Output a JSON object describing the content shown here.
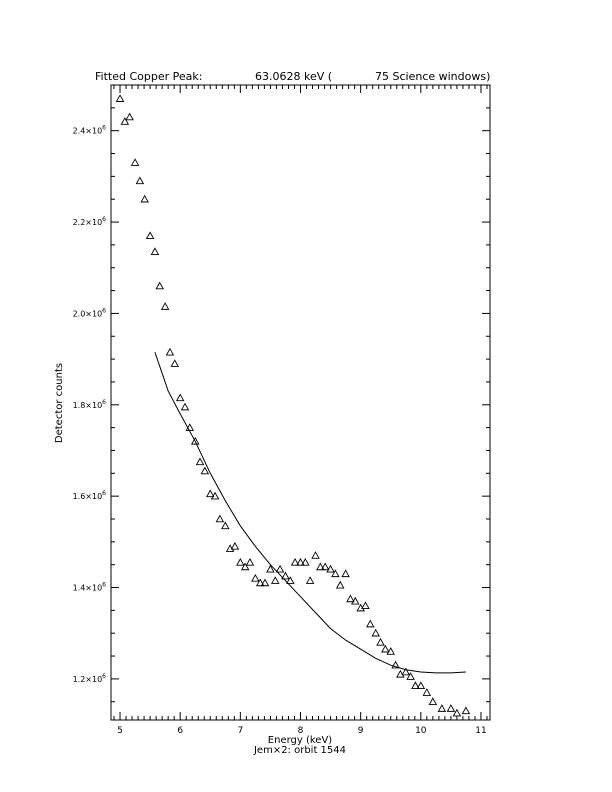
{
  "chart_data": {
    "type": "scatter",
    "title_parts": [
      "Fitted Copper Peak:",
      "63.0628 keV (",
      "75 Science windows)"
    ],
    "xlabel": "Energy (keV)",
    "ylabel": "Detector counts",
    "subtitle": "Jem×2: orbit 1544",
    "xlim": [
      4.85,
      11.15
    ],
    "ylim": [
      1110000.0,
      2500000.0
    ],
    "x_ticks": [
      5,
      6,
      7,
      8,
      9,
      10,
      11
    ],
    "y_ticks": [
      {
        "value": 1200000.0,
        "mant": "1.2×10",
        "exp": "6"
      },
      {
        "value": 1400000.0,
        "mant": "1.4×10",
        "exp": "6"
      },
      {
        "value": 1600000.0,
        "mant": "1.6×10",
        "exp": "6"
      },
      {
        "value": 1800000.0,
        "mant": "1.8×10",
        "exp": "6"
      },
      {
        "value": 2000000.0,
        "mant": "2.0×10",
        "exp": "6"
      },
      {
        "value": 2200000.0,
        "mant": "2.2×10",
        "exp": "6"
      },
      {
        "value": 2400000.0,
        "mant": "2.4×10",
        "exp": "6"
      }
    ],
    "points": [
      [
        5.0,
        2470000.0
      ],
      [
        5.08,
        2420000.0
      ],
      [
        5.16,
        2430000.0
      ],
      [
        5.25,
        2330000.0
      ],
      [
        5.33,
        2290000.0
      ],
      [
        5.41,
        2250000.0
      ],
      [
        5.5,
        2170000.0
      ],
      [
        5.58,
        2135000.0
      ],
      [
        5.66,
        2060000.0
      ],
      [
        5.75,
        2015000.0
      ],
      [
        5.83,
        1915000.0
      ],
      [
        5.91,
        1890000.0
      ],
      [
        6.0,
        1815000.0
      ],
      [
        6.08,
        1795000.0
      ],
      [
        6.16,
        1750000.0
      ],
      [
        6.25,
        1720000.0
      ],
      [
        6.33,
        1675000.0
      ],
      [
        6.41,
        1655000.0
      ],
      [
        6.5,
        1605000.0
      ],
      [
        6.58,
        1600000.0
      ],
      [
        6.66,
        1550000.0
      ],
      [
        6.75,
        1535000.0
      ],
      [
        6.83,
        1485000.0
      ],
      [
        6.91,
        1490000.0
      ],
      [
        7.0,
        1455000.0
      ],
      [
        7.08,
        1445000.0
      ],
      [
        7.16,
        1455000.0
      ],
      [
        7.25,
        1420000.0
      ],
      [
        7.33,
        1410000.0
      ],
      [
        7.41,
        1410000.0
      ],
      [
        7.5,
        1440000.0
      ],
      [
        7.58,
        1415000.0
      ],
      [
        7.66,
        1440000.0
      ],
      [
        7.75,
        1425000.0
      ],
      [
        7.83,
        1415000.0
      ],
      [
        7.91,
        1455000.0
      ],
      [
        8.0,
        1455000.0
      ],
      [
        8.08,
        1455000.0
      ],
      [
        8.16,
        1415000.0
      ],
      [
        8.25,
        1470000.0
      ],
      [
        8.33,
        1445000.0
      ],
      [
        8.41,
        1445000.0
      ],
      [
        8.5,
        1440000.0
      ],
      [
        8.58,
        1430000.0
      ],
      [
        8.66,
        1405000.0
      ],
      [
        8.75,
        1430000.0
      ],
      [
        8.83,
        1375000.0
      ],
      [
        8.91,
        1370000.0
      ],
      [
        9.0,
        1355000.0
      ],
      [
        9.08,
        1360000.0
      ],
      [
        9.16,
        1320000.0
      ],
      [
        9.25,
        1300000.0
      ],
      [
        9.33,
        1280000.0
      ],
      [
        9.41,
        1265000.0
      ],
      [
        9.5,
        1260000.0
      ],
      [
        9.58,
        1230000.0
      ],
      [
        9.66,
        1210000.0
      ],
      [
        9.75,
        1215000.0
      ],
      [
        9.83,
        1205000.0
      ],
      [
        9.91,
        1185000.0
      ],
      [
        10.0,
        1185000.0
      ],
      [
        10.1,
        1170000.0
      ],
      [
        10.2,
        1150000.0
      ],
      [
        10.35,
        1135000.0
      ],
      [
        10.5,
        1135000.0
      ],
      [
        10.6,
        1125000.0
      ],
      [
        10.75,
        1130000.0
      ]
    ],
    "fit_curve": [
      [
        5.58,
        1915000.0
      ],
      [
        5.8,
        1830000.0
      ],
      [
        6.0,
        1780000.0
      ],
      [
        6.25,
        1720000.0
      ],
      [
        6.5,
        1650000.0
      ],
      [
        6.75,
        1590000.0
      ],
      [
        7.0,
        1535000.0
      ],
      [
        7.25,
        1490000.0
      ],
      [
        7.5,
        1450000.0
      ],
      [
        7.75,
        1415000.0
      ],
      [
        8.0,
        1380000.0
      ],
      [
        8.25,
        1345000.0
      ],
      [
        8.5,
        1310000.0
      ],
      [
        8.75,
        1285000.0
      ],
      [
        9.0,
        1265000.0
      ],
      [
        9.25,
        1245000.0
      ],
      [
        9.5,
        1230000.0
      ],
      [
        9.75,
        1220000.0
      ],
      [
        10.0,
        1215000.0
      ],
      [
        10.25,
        1213000.0
      ],
      [
        10.5,
        1213000.0
      ],
      [
        10.75,
        1215000.0
      ]
    ]
  }
}
